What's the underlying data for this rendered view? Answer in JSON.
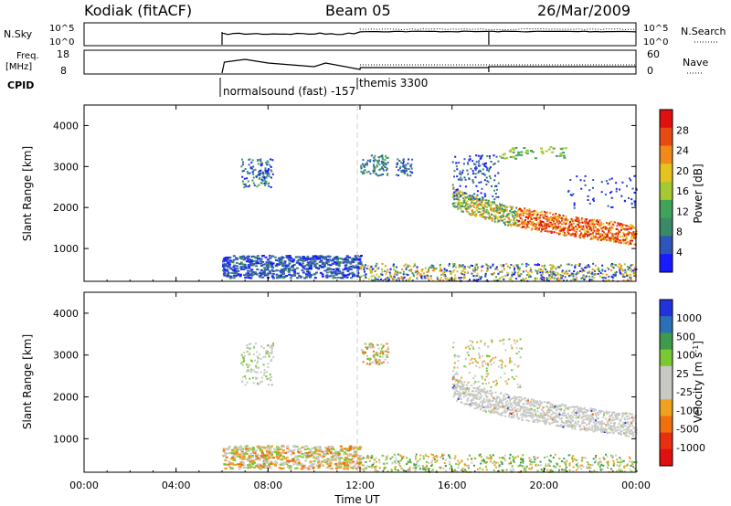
{
  "header": {
    "station": "Kodiak (fitACF)",
    "beam": "Beam 05",
    "date": "26/Mar/2009"
  },
  "top_panels": {
    "nsky_label": "N.Sky",
    "nsky_ticks": [
      "10^5",
      "10^0"
    ],
    "nsearch_label": "N.Search",
    "nsearch_ticks": [
      "10^5",
      "10^0"
    ],
    "freq_label": "Freq.",
    "freq_unit": "[MHz]",
    "freq_ticks": [
      "18",
      "8"
    ],
    "nave_label": "Nave",
    "nave_ticks": [
      "60",
      "0"
    ],
    "cpid_label": "CPID",
    "cpid_entries": [
      {
        "name": "normalsound (fast) -157",
        "start_hour": 6.0
      },
      {
        "name": "themis 3300",
        "start_hour": 12.0
      }
    ]
  },
  "colors": {
    "power_scale": [
      "#1a1aff",
      "#2f55b8",
      "#3a8a6a",
      "#3fa35a",
      "#a6c832",
      "#e6c21e",
      "#f08a1a",
      "#e84a14",
      "#e01010"
    ],
    "velocity_scale": [
      "#2233dd",
      "#2b6fb8",
      "#3f9a4a",
      "#7ac832",
      "#c8c8c4",
      "#c8c8c4",
      "#f0a21e",
      "#f07010",
      "#e83010",
      "#e01010"
    ]
  },
  "chart_data": [
    {
      "type": "heatmap",
      "name": "power",
      "ylabel": "Slant Range [km]",
      "yticks": [
        "4000",
        "3000",
        "2000",
        "1000"
      ],
      "ylim": [
        200,
        4500
      ],
      "xlim_hours": [
        0,
        24
      ],
      "colorbar_label": "Power [dB]",
      "colorbar_ticks": [
        "28",
        "24",
        "20",
        "16",
        "12",
        "8",
        "4"
      ],
      "scatter_regions": [
        {
          "x": [
            6.0,
            12.0
          ],
          "y": [
            300,
            800
          ],
          "value": "low"
        },
        {
          "x": [
            12.0,
            24.0
          ],
          "y": [
            250,
            700
          ],
          "value": "low"
        },
        {
          "x": [
            6.8,
            8.2
          ],
          "y": [
            2500,
            3200
          ],
          "value": "mid"
        },
        {
          "x": [
            12.0,
            13.0
          ],
          "y": [
            2800,
            3300
          ],
          "value": "mid"
        },
        {
          "x": [
            16.0,
            24.0
          ],
          "y": [
            1100,
            2200
          ],
          "value": "high"
        }
      ]
    },
    {
      "type": "heatmap",
      "name": "velocity",
      "ylabel": "Slant Range [km]",
      "yticks": [
        "4000",
        "3000",
        "2000",
        "1000"
      ],
      "ylim": [
        200,
        4500
      ],
      "xlim_hours": [
        0,
        24
      ],
      "colorbar_label": "Velocity [m s^-1]",
      "colorbar_ticks": [
        "1000",
        "500",
        "100",
        "25",
        "-25",
        "-100",
        "-500",
        "-1000"
      ],
      "scatter_regions": [
        {
          "x": [
            6.0,
            12.0
          ],
          "y": [
            300,
            800
          ],
          "value": "mixed"
        },
        {
          "x": [
            16.0,
            24.0
          ],
          "y": [
            1100,
            2200
          ],
          "value": "near-zero"
        }
      ]
    }
  ],
  "xaxis": {
    "ticks": [
      "00:00",
      "04:00",
      "08:00",
      "12:00",
      "16:00",
      "20:00",
      "00:00"
    ],
    "label": "Time UT"
  }
}
